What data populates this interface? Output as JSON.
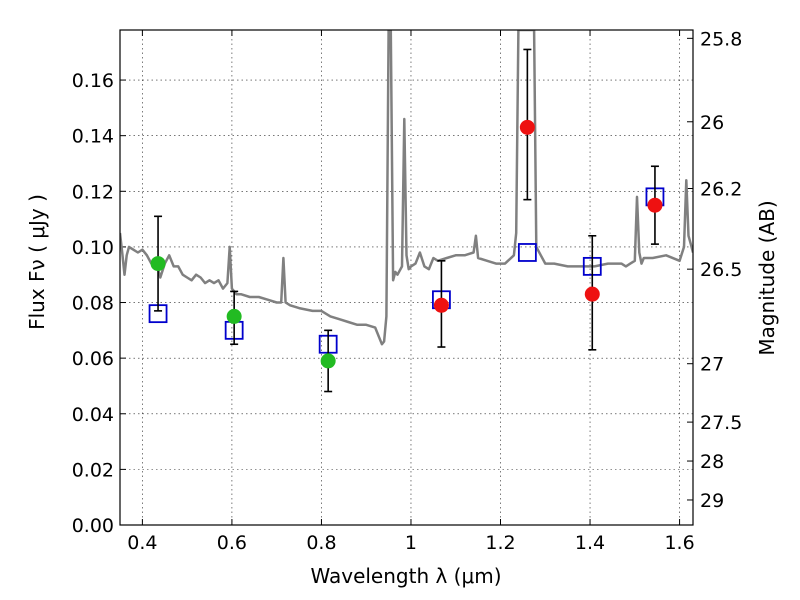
{
  "chart_data": {
    "type": "scatter",
    "xlabel": "Wavelength  λ (μm)",
    "ylabel": "Flux  Fν  ( μJy )",
    "ylabel_right": "Magnitude (AB)",
    "xlim": [
      0.35,
      1.63
    ],
    "ylim": [
      0.0,
      0.178
    ],
    "grid": true,
    "x_ticks": [
      0.4,
      0.6,
      0.8,
      1.0,
      1.2,
      1.4,
      1.6
    ],
    "x_tick_labels": [
      "0.4",
      "0.6",
      "0.8",
      "1",
      "1.2",
      "1.4",
      "1.6"
    ],
    "y_ticks": [
      0.0,
      0.02,
      0.04,
      0.06,
      0.08,
      0.1,
      0.12,
      0.14,
      0.16
    ],
    "y_tick_labels": [
      "0.00",
      "0.02",
      "0.04",
      "0.06",
      "0.08",
      "0.10",
      "0.12",
      "0.14",
      "0.16"
    ],
    "right_ticks": [
      {
        "label": "25.8",
        "flux": 0.175
      },
      {
        "label": "26",
        "flux": 0.145
      },
      {
        "label": "26.2",
        "flux": 0.121
      },
      {
        "label": "26.5",
        "flux": 0.092
      },
      {
        "label": "27",
        "flux": 0.058
      },
      {
        "label": "27.5",
        "flux": 0.037
      },
      {
        "label": "28",
        "flux": 0.023
      },
      {
        "label": "29",
        "flux": 0.009
      }
    ],
    "series": [
      {
        "marker": "line",
        "color": "#808080",
        "x": [
          0.35,
          0.355,
          0.36,
          0.365,
          0.37,
          0.38,
          0.39,
          0.4,
          0.41,
          0.42,
          0.43,
          0.44,
          0.45,
          0.46,
          0.47,
          0.48,
          0.49,
          0.5,
          0.51,
          0.52,
          0.53,
          0.54,
          0.55,
          0.56,
          0.57,
          0.58,
          0.59,
          0.595,
          0.6,
          0.605,
          0.61,
          0.62,
          0.64,
          0.66,
          0.68,
          0.7,
          0.71,
          0.715,
          0.72,
          0.73,
          0.75,
          0.78,
          0.8,
          0.82,
          0.84,
          0.86,
          0.88,
          0.9,
          0.92,
          0.935,
          0.94,
          0.945,
          0.95,
          0.955,
          0.96,
          0.965,
          0.97,
          0.98,
          0.985,
          0.99,
          0.995,
          1.0,
          1.01,
          1.02,
          1.03,
          1.04,
          1.05,
          1.06,
          1.08,
          1.1,
          1.12,
          1.14,
          1.145,
          1.15,
          1.17,
          1.19,
          1.21,
          1.23,
          1.235,
          1.24,
          1.25,
          1.26,
          1.27,
          1.275,
          1.28,
          1.29,
          1.3,
          1.32,
          1.35,
          1.38,
          1.41,
          1.44,
          1.46,
          1.47,
          1.48,
          1.49,
          1.5,
          1.505,
          1.51,
          1.515,
          1.52,
          1.54,
          1.57,
          1.6,
          1.61,
          1.615,
          1.62,
          1.625,
          1.63
        ],
        "y": [
          0.105,
          0.098,
          0.09,
          0.097,
          0.1,
          0.099,
          0.098,
          0.099,
          0.097,
          0.094,
          0.095,
          0.089,
          0.094,
          0.097,
          0.093,
          0.093,
          0.09,
          0.089,
          0.088,
          0.09,
          0.089,
          0.087,
          0.088,
          0.087,
          0.088,
          0.085,
          0.087,
          0.1,
          0.085,
          0.084,
          0.083,
          0.083,
          0.082,
          0.082,
          0.081,
          0.08,
          0.08,
          0.096,
          0.08,
          0.079,
          0.078,
          0.077,
          0.077,
          0.075,
          0.074,
          0.073,
          0.072,
          0.072,
          0.071,
          0.065,
          0.066,
          0.075,
          0.178,
          0.178,
          0.088,
          0.091,
          0.09,
          0.093,
          0.146,
          0.097,
          0.092,
          0.093,
          0.094,
          0.098,
          0.093,
          0.092,
          0.096,
          0.095,
          0.096,
          0.097,
          0.097,
          0.098,
          0.104,
          0.096,
          0.095,
          0.094,
          0.094,
          0.097,
          0.105,
          0.178,
          0.178,
          0.178,
          0.178,
          0.178,
          0.1,
          0.097,
          0.094,
          0.094,
          0.093,
          0.093,
          0.093,
          0.094,
          0.094,
          0.094,
          0.093,
          0.094,
          0.095,
          0.118,
          0.098,
          0.094,
          0.096,
          0.096,
          0.097,
          0.095,
          0.1,
          0.124,
          0.104,
          0.101,
          0.098
        ]
      },
      {
        "marker": "square",
        "color": "#0000cc",
        "x": [
          0.435,
          0.605,
          0.815,
          1.068,
          1.26,
          1.405,
          1.545
        ],
        "y": [
          0.076,
          0.07,
          0.065,
          0.081,
          0.098,
          0.093,
          0.118
        ]
      },
      {
        "marker": "circle",
        "color": "#22bb22",
        "x": [
          0.435,
          0.605,
          0.815
        ],
        "y": [
          0.094,
          0.075,
          0.059
        ],
        "yerr_low": [
          0.077,
          0.065,
          0.048
        ],
        "yerr_high": [
          0.111,
          0.084,
          0.07
        ]
      },
      {
        "marker": "circle",
        "color": "#ee1111",
        "x": [
          1.068,
          1.26,
          1.405,
          1.545
        ],
        "y": [
          0.079,
          0.143,
          0.083,
          0.115
        ],
        "yerr_low": [
          0.064,
          0.117,
          0.063,
          0.101
        ],
        "yerr_high": [
          0.095,
          0.171,
          0.104,
          0.129
        ]
      }
    ]
  }
}
